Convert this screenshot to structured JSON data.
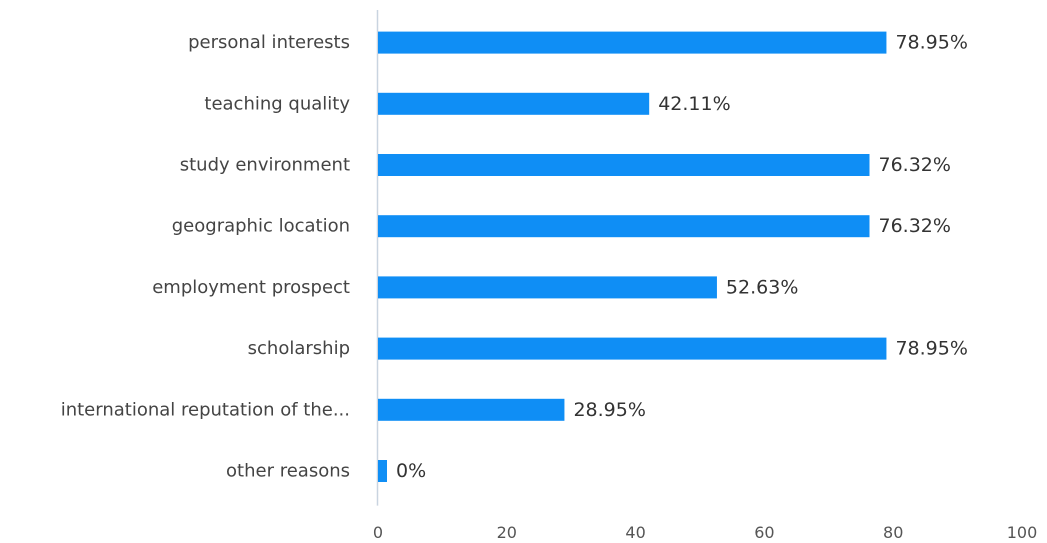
{
  "chart_data": {
    "type": "bar",
    "orientation": "horizontal",
    "categories": [
      "personal interests",
      "teaching quality",
      "study environment",
      "geographic location",
      "employment prospect",
      "scholarship",
      "international reputation of the...",
      "other reasons"
    ],
    "values": [
      78.95,
      42.11,
      76.32,
      76.32,
      52.63,
      78.95,
      28.95,
      0
    ],
    "value_labels": [
      "78.95%",
      "42.11%",
      "76.32%",
      "76.32%",
      "52.63%",
      "78.95%",
      "28.95%",
      "0%"
    ],
    "x_ticks": [
      "0",
      "20",
      "40",
      "60",
      "80",
      "100"
    ],
    "xlim": [
      0,
      100
    ],
    "title": "",
    "xlabel": "",
    "ylabel": "",
    "grid": false,
    "bar_color": "#0f8ef5",
    "axis_color": "#c9d4e0"
  }
}
